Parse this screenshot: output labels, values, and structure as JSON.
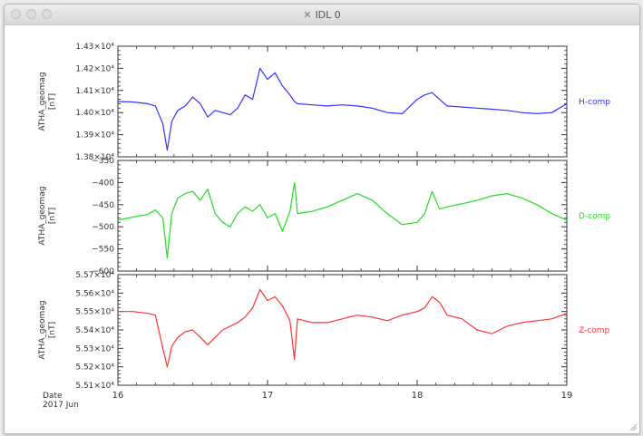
{
  "window": {
    "title": "IDL 0",
    "icons": {
      "title": "x11-icon",
      "resize": "resize-grip-icon"
    }
  },
  "chart_data": [
    {
      "type": "line",
      "ylabel": "ATHA_geomag [nT]",
      "series": [
        {
          "name": "H-comp",
          "color": "#3333ff"
        }
      ],
      "ylim": [
        13800,
        14300
      ],
      "yticks": [
        13800,
        13900,
        14000,
        14100,
        14200,
        14300
      ],
      "ytick_labels": [
        "1.38×10⁴",
        "1.39×10⁴",
        "1.40×10⁴",
        "1.41×10⁴",
        "1.42×10⁴",
        "1.43×10⁴"
      ],
      "x": [
        16.0,
        16.1,
        16.2,
        16.25,
        16.3,
        16.33,
        16.36,
        16.4,
        16.45,
        16.5,
        16.55,
        16.6,
        16.65,
        16.7,
        16.75,
        16.8,
        16.85,
        16.9,
        16.95,
        17.0,
        17.05,
        17.1,
        17.15,
        17.18,
        17.2,
        17.3,
        17.4,
        17.5,
        17.6,
        17.7,
        17.8,
        17.9,
        18.0,
        18.05,
        18.1,
        18.15,
        18.2,
        18.3,
        18.4,
        18.5,
        18.6,
        18.7,
        18.8,
        18.9,
        19.0
      ],
      "values": [
        14050,
        14048,
        14040,
        14030,
        13950,
        13830,
        13960,
        14010,
        14030,
        14070,
        14040,
        13980,
        14010,
        14000,
        13990,
        14020,
        14080,
        14060,
        14200,
        14150,
        14180,
        14120,
        14080,
        14050,
        14040,
        14035,
        14030,
        14035,
        14030,
        14020,
        14000,
        13995,
        14060,
        14080,
        14090,
        14060,
        14030,
        14025,
        14020,
        14015,
        14010,
        14000,
        13995,
        14000,
        14040
      ]
    },
    {
      "type": "line",
      "ylabel": "ATHA_geomag [nT]",
      "series": [
        {
          "name": "D-comp",
          "color": "#22dd22"
        }
      ],
      "ylim": [
        -600,
        -350
      ],
      "yticks": [
        -600,
        -550,
        -500,
        -450,
        -400,
        -350
      ],
      "ytick_labels": [
        "−600",
        "−550",
        "−500",
        "−450",
        "−400",
        "−350"
      ],
      "x": [
        16.0,
        16.1,
        16.2,
        16.25,
        16.3,
        16.33,
        16.36,
        16.4,
        16.45,
        16.5,
        16.55,
        16.6,
        16.65,
        16.7,
        16.75,
        16.8,
        16.85,
        16.9,
        16.95,
        17.0,
        17.05,
        17.1,
        17.15,
        17.18,
        17.2,
        17.3,
        17.4,
        17.5,
        17.6,
        17.7,
        17.8,
        17.9,
        18.0,
        18.05,
        18.1,
        18.15,
        18.2,
        18.3,
        18.4,
        18.5,
        18.6,
        18.7,
        18.8,
        18.9,
        19.0
      ],
      "values": [
        -485,
        -478,
        -472,
        -462,
        -480,
        -570,
        -470,
        -435,
        -425,
        -420,
        -440,
        -415,
        -470,
        -490,
        -500,
        -470,
        -455,
        -465,
        -450,
        -480,
        -470,
        -510,
        -465,
        -400,
        -470,
        -465,
        -455,
        -440,
        -425,
        -440,
        -470,
        -495,
        -490,
        -470,
        -420,
        -460,
        -455,
        -448,
        -440,
        -430,
        -425,
        -435,
        -450,
        -470,
        -485
      ]
    },
    {
      "type": "line",
      "ylabel": "ATHA_geomag [nT]",
      "series": [
        {
          "name": "Z-comp",
          "color": "#ff3333"
        }
      ],
      "ylim": [
        55100,
        55700
      ],
      "yticks": [
        55100,
        55200,
        55300,
        55400,
        55500,
        55600,
        55700
      ],
      "ytick_labels": [
        "5.51×10⁴",
        "5.52×10⁴",
        "5.53×10⁴",
        "5.54×10⁴",
        "5.55×10⁴",
        "5.56×10⁴",
        "5.57×10⁴"
      ],
      "x": [
        16.0,
        16.1,
        16.2,
        16.25,
        16.3,
        16.33,
        16.36,
        16.4,
        16.45,
        16.5,
        16.55,
        16.6,
        16.65,
        16.7,
        16.75,
        16.8,
        16.85,
        16.9,
        16.95,
        17.0,
        17.05,
        17.1,
        17.15,
        17.18,
        17.2,
        17.3,
        17.4,
        17.5,
        17.6,
        17.7,
        17.8,
        17.9,
        18.0,
        18.05,
        18.1,
        18.15,
        18.2,
        18.3,
        18.4,
        18.5,
        18.6,
        18.7,
        18.8,
        18.9,
        19.0
      ],
      "values": [
        55500,
        55500,
        55490,
        55480,
        55300,
        55200,
        55310,
        55360,
        55390,
        55400,
        55360,
        55320,
        55360,
        55400,
        55420,
        55440,
        55470,
        55520,
        55620,
        55560,
        55580,
        55530,
        55450,
        55240,
        55460,
        55440,
        55440,
        55460,
        55480,
        55470,
        55450,
        55480,
        55500,
        55520,
        55580,
        55550,
        55480,
        55460,
        55400,
        55380,
        55420,
        55440,
        55450,
        55460,
        55490
      ]
    }
  ],
  "xaxis": {
    "xlim": [
      16,
      19
    ],
    "ticks": [
      16,
      17,
      18,
      19
    ],
    "tick_labels": [
      "16",
      "17",
      "18",
      "19"
    ],
    "label_line1": "Date",
    "label_line2": "2017 Jun"
  }
}
